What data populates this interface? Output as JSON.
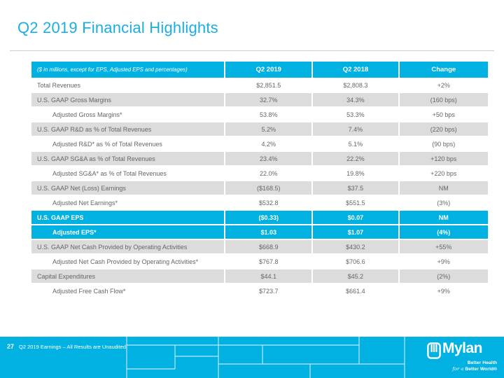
{
  "slide": {
    "title": "Q2 2019 Financial Highlights",
    "page_number": "27",
    "footnote": "Q2 2019 Earnings – All Results are Unaudited"
  },
  "colors": {
    "accent_cyan": "#00B1E1",
    "shaded_row": "#DCDCDC",
    "body_text": "#666666",
    "title_cyan": "#1AAEE5"
  },
  "table": {
    "header": {
      "note": "($ in millions, except for EPS, Adjusted EPS and percentages)",
      "columns": [
        "Q2 2019",
        "Q2 2018",
        "Change"
      ]
    },
    "rows": [
      {
        "label": "Total Revenues",
        "q2_2019": "$2,851.5",
        "q2_2018": "$2,808.3",
        "change": "+2%",
        "style": "plain",
        "indent": false
      },
      {
        "label": "U.S. GAAP Gross Margins",
        "q2_2019": "32.7%",
        "q2_2018": "34.3%",
        "change": "(160 bps)",
        "style": "shaded",
        "indent": false
      },
      {
        "label": "Adjusted Gross Margins*",
        "q2_2019": "53.8%",
        "q2_2018": "53.3%",
        "change": "+50 bps",
        "style": "plain",
        "indent": true
      },
      {
        "label": "U.S. GAAP R&D as % of Total Revenues",
        "q2_2019": "5.2%",
        "q2_2018": "7.4%",
        "change": "(220 bps)",
        "style": "shaded",
        "indent": false
      },
      {
        "label": "Adjusted R&D* as % of Total Revenues",
        "q2_2019": "4.2%",
        "q2_2018": "5.1%",
        "change": "(90 bps)",
        "style": "plain",
        "indent": true
      },
      {
        "label": "U.S. GAAP SG&A as % of Total Revenues",
        "q2_2019": "23.4%",
        "q2_2018": "22.2%",
        "change": "+120 bps",
        "style": "shaded",
        "indent": false
      },
      {
        "label": "Adjusted SG&A* as % of Total Revenues",
        "q2_2019": "22.0%",
        "q2_2018": "19.8%",
        "change": "+220 bps",
        "style": "plain",
        "indent": true
      },
      {
        "label": "U.S. GAAP Net (Loss) Earnings",
        "q2_2019": "($168.5)",
        "q2_2018": "$37.5",
        "change": "NM",
        "style": "shaded",
        "indent": false
      },
      {
        "label": "Adjusted Net Earnings*",
        "q2_2019": "$532.8",
        "q2_2018": "$551.5",
        "change": "(3%)",
        "style": "plain",
        "indent": true
      },
      {
        "label": "U.S. GAAP EPS",
        "q2_2019": "($0.33)",
        "q2_2018": "$0.07",
        "change": "NM",
        "style": "highlight",
        "indent": false
      },
      {
        "label": "Adjusted EPS*",
        "q2_2019": "$1.03",
        "q2_2018": "$1.07",
        "change": "(4%)",
        "style": "highlight",
        "indent": true
      },
      {
        "label": "U.S. GAAP Net Cash Provided by Operating Activities",
        "q2_2019": "$668.9",
        "q2_2018": "$430.2",
        "change": "+55%",
        "style": "shaded",
        "indent": false
      },
      {
        "label": "Adjusted Net Cash Provided by Operating Activities*",
        "q2_2019": "$767.8",
        "q2_2018": "$706.6",
        "change": "+9%",
        "style": "plain",
        "indent": true
      },
      {
        "label": "Capital Expenditures",
        "q2_2019": "$44.1",
        "q2_2018": "$45.2",
        "change": "(2%)",
        "style": "shaded",
        "indent": false
      },
      {
        "label": "Adjusted Free Cash Flow*",
        "q2_2019": "$723.7",
        "q2_2018": "$661.4",
        "change": "+9%",
        "style": "plain",
        "indent": true
      }
    ]
  },
  "logo": {
    "wordmark": "Mylan",
    "tagline_line1": "Better Health",
    "tagline_line2_script": "for a",
    "tagline_line2_rest": "Better World®"
  }
}
